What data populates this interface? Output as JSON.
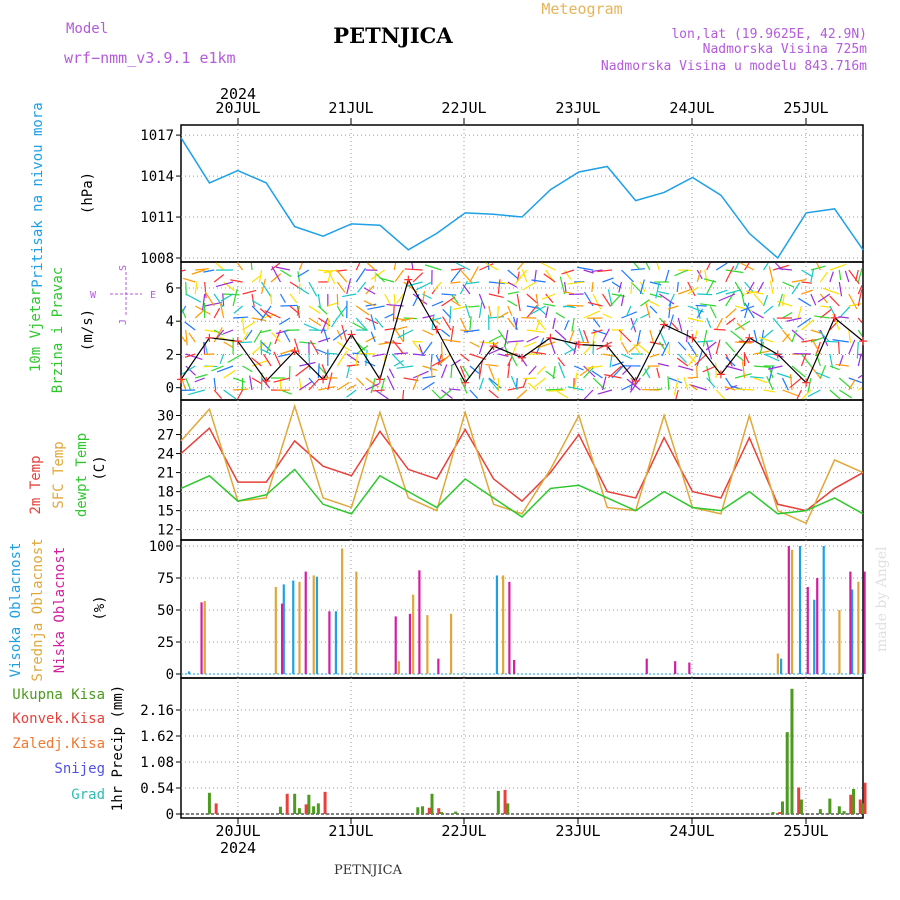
{
  "header": {
    "model_label": "Model",
    "model_name": "wrf−nmm_v3.9.1  e1km",
    "station": "PETNJICA",
    "title": "Meteogram",
    "lonlat": "lon,lat (19.9625E, 42.9N)",
    "altitude": "Nadmorska Visina 725m",
    "model_altitude": "Nadmorska Visina u modelu 843.716m",
    "footer_station": "PETNJICA",
    "watermark": "made by Angel"
  },
  "colors": {
    "pressure": "#1ea0e6",
    "temp2m": "#e8403a",
    "sfc": "#e0a83a",
    "dewpt": "#2ec82e",
    "high_cloud": "#1ea0e6",
    "mid_cloud": "#e0a83a",
    "low_cloud": "#d21ea0",
    "total_precip": "#4b9b1e",
    "conv_precip": "#e8403a",
    "frz_precip": "#f07830",
    "snow": "#5050e6",
    "grad": "#2ebcb4",
    "magenta_text": "#b45adc",
    "orange_text": "#e8b45a"
  },
  "chart_data": [
    {
      "type": "line",
      "panel": "pressure",
      "ylabel": [
        "Pritisak na nivou mora",
        "(hPa)"
      ],
      "ylim": [
        1008,
        1017.3
      ],
      "yticks": [
        1008,
        1011,
        1014,
        1017
      ],
      "x_days": [
        "20JUL",
        "21JUL",
        "22JUL",
        "23JUL",
        "24JUL",
        "25JUL"
      ],
      "x_year": "2024",
      "series": [
        {
          "x": [
            0,
            6,
            12,
            18,
            24,
            30,
            36,
            42,
            48,
            54,
            60,
            66,
            72,
            78,
            84,
            90,
            96,
            102,
            108,
            114,
            120,
            126,
            132,
            138,
            144
          ],
          "values": [
            1016.8,
            1013.5,
            1014.4,
            1013.5,
            1010.3,
            1009.6,
            1010.5,
            1010.4,
            1008.6,
            1009.8,
            1011.3,
            1011.2,
            1011.0,
            1013.0,
            1014.3,
            1014.7,
            1012.2,
            1012.8,
            1013.9,
            1012.6,
            1009.8,
            1008.0,
            1011.3,
            1011.6,
            1008.6
          ]
        }
      ]
    },
    {
      "type": "line",
      "panel": "wind",
      "ylabel": [
        "10m Vjetar",
        "Brzina i Pravac",
        "(m/s)"
      ],
      "compass": [
        "S",
        "W",
        "E",
        "J"
      ],
      "ylim": [
        -0.5,
        7.2
      ],
      "yticks": [
        0,
        2,
        4,
        6
      ],
      "series": [
        {
          "name": "speed",
          "x": [
            0,
            6,
            12,
            18,
            24,
            30,
            36,
            42,
            48,
            54,
            60,
            66,
            72,
            78,
            84,
            90,
            96,
            102,
            108,
            114,
            120,
            126,
            132,
            138,
            144
          ],
          "values": [
            0.5,
            3.0,
            2.8,
            0.4,
            2.2,
            0.5,
            3.2,
            0.5,
            6.5,
            3.5,
            0.3,
            2.5,
            1.8,
            3.0,
            2.6,
            2.5,
            0.4,
            3.8,
            3.0,
            0.8,
            3.0,
            2.0,
            0.3,
            4.2,
            2.8
          ]
        }
      ]
    },
    {
      "type": "line",
      "panel": "temperature",
      "ylabel": [
        "2m Temp",
        "SFC Temp",
        "dewpt Temp",
        "(C)"
      ],
      "ylim": [
        11,
        31.5
      ],
      "yticks": [
        12,
        15,
        18,
        21,
        24,
        27,
        30
      ],
      "series": [
        {
          "name": "2m Temp",
          "x": [
            0,
            6,
            12,
            18,
            24,
            30,
            36,
            42,
            48,
            54,
            60,
            66,
            72,
            78,
            84,
            90,
            96,
            102,
            108,
            114,
            120,
            126,
            132,
            138,
            144
          ],
          "values": [
            24.0,
            28.0,
            19.5,
            19.5,
            26.0,
            22.0,
            20.5,
            27.5,
            21.5,
            20.0,
            27.8,
            20.0,
            16.5,
            21.0,
            27.0,
            18.0,
            17.0,
            26.5,
            18.0,
            17.0,
            26.5,
            16.0,
            15.0,
            18.5,
            21.0
          ]
        },
        {
          "name": "SFC Temp",
          "x": [
            0,
            6,
            12,
            18,
            24,
            30,
            36,
            42,
            48,
            54,
            60,
            66,
            72,
            78,
            84,
            90,
            96,
            102,
            108,
            114,
            120,
            126,
            132,
            138,
            144
          ],
          "values": [
            26.0,
            31.0,
            16.5,
            17.0,
            31.5,
            17.0,
            15.5,
            30.5,
            17.0,
            15.0,
            30.5,
            16.0,
            14.5,
            21.5,
            30.0,
            15.5,
            15.0,
            30.0,
            15.5,
            14.5,
            30.0,
            15.0,
            13.0,
            23.0,
            21.0
          ]
        },
        {
          "name": "dewpt Temp",
          "x": [
            0,
            6,
            12,
            18,
            24,
            30,
            36,
            42,
            48,
            54,
            60,
            66,
            72,
            78,
            84,
            90,
            96,
            102,
            108,
            114,
            120,
            126,
            132,
            138,
            144
          ],
          "values": [
            18.5,
            20.5,
            16.5,
            17.5,
            21.5,
            16.0,
            14.5,
            20.5,
            18.0,
            15.5,
            20.0,
            17.0,
            14.0,
            18.5,
            19.0,
            17.0,
            15.0,
            18.0,
            15.5,
            15.0,
            18.0,
            14.5,
            15.0,
            17.0,
            14.5
          ]
        }
      ]
    },
    {
      "type": "bar",
      "panel": "cloud",
      "ylabel": [
        "Visoka Oblacnost",
        "Srednja Oblacnost",
        "Niska Oblacnost",
        "(%)"
      ],
      "ylim": [
        0,
        100
      ],
      "yticks": [
        0,
        25,
        50,
        75,
        100
      ],
      "series": [
        {
          "name": "Visoka Oblacnost",
          "x": [
            2,
            22,
            24,
            29,
            33,
            67,
            127,
            131,
            134,
            136,
            142
          ],
          "values": [
            2,
            70,
            73,
            76,
            49,
            77,
            12,
            100,
            58,
            100,
            66
          ]
        },
        {
          "name": "Srednja Oblacnost",
          "x": [
            5,
            20,
            25,
            28,
            34,
            37,
            46,
            49,
            52,
            57,
            68,
            126,
            129,
            139,
            143
          ],
          "values": [
            57,
            68,
            72,
            77,
            98,
            80,
            10,
            62,
            46,
            47,
            77,
            16,
            97,
            50,
            72
          ]
        },
        {
          "name": "Niska Oblacnost",
          "x": [
            4,
            21,
            26,
            31,
            45,
            48,
            50,
            54,
            69,
            70,
            98,
            104,
            107,
            128,
            132,
            134,
            141,
            144
          ],
          "values": [
            56,
            55,
            80,
            49,
            45,
            47,
            81,
            12,
            72,
            11,
            12,
            10,
            9,
            100,
            68,
            75,
            80,
            80
          ]
        }
      ]
    },
    {
      "type": "bar",
      "panel": "precip",
      "ylabel": [
        "1hr Precip (mm)"
      ],
      "legend": [
        "Ukupna Kisa",
        "Konvek.Kisa",
        "Zaledj.Kisa",
        "Snijeg",
        "Grad"
      ],
      "ylim": [
        0,
        2.7
      ],
      "yticks": [
        0,
        0.54,
        1.08,
        1.62,
        2.16
      ],
      "series": [
        {
          "name": "Ukupna Kisa",
          "x": [
            6,
            21,
            24,
            25,
            27,
            28,
            29,
            50,
            51,
            53,
            55,
            58,
            67,
            69,
            125,
            127,
            128,
            129,
            131,
            135,
            137,
            139,
            140,
            142,
            144
          ],
          "values": [
            0.44,
            0.15,
            0.42,
            0.12,
            0.4,
            0.16,
            0.22,
            0.14,
            0.16,
            0.42,
            0.04,
            0.05,
            0.48,
            0.22,
            0.04,
            0.26,
            1.7,
            2.6,
            0.3,
            0.1,
            0.32,
            0.16,
            0.06,
            0.52,
            0.22
          ]
        },
        {
          "name": "Konvek.Kisa",
          "x": [
            7,
            22,
            26,
            30,
            52,
            54,
            68,
            126,
            130,
            141,
            143,
            144
          ],
          "values": [
            0.22,
            0.42,
            0.2,
            0.46,
            0.13,
            0.12,
            0.5,
            0.04,
            0.55,
            0.4,
            0.3,
            0.65
          ]
        }
      ]
    }
  ]
}
